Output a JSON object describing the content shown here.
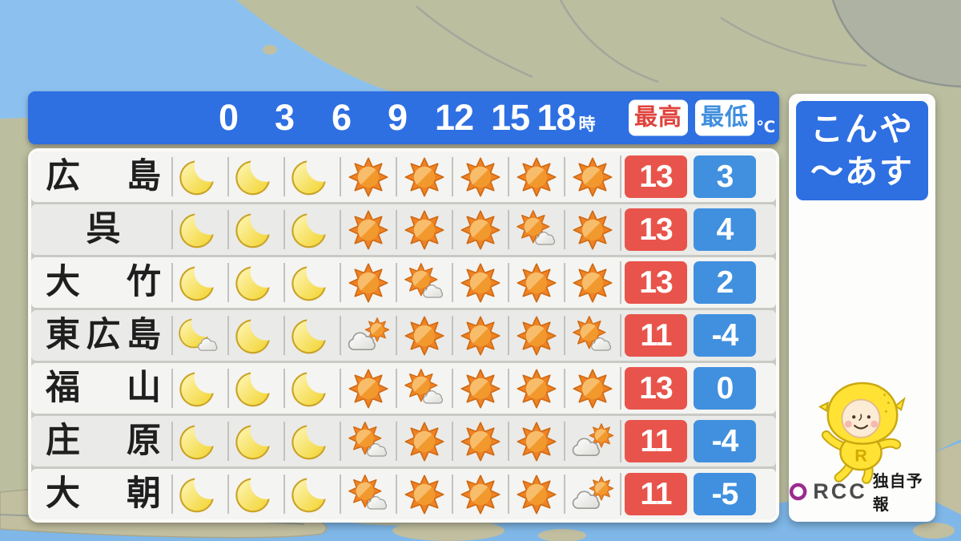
{
  "chart_data": {
    "type": "table",
    "title": "こんや～あす",
    "hour_ticks": [
      "0",
      "3",
      "6",
      "9",
      "12",
      "15",
      "18"
    ],
    "hour_suffix": "時",
    "high_label": "最高",
    "low_label": "最低",
    "unit": "℃",
    "icon_legend": {
      "moon": "clear night (crescent moon)",
      "sun": "sunny",
      "sun-cloud": "sunny with some cloud",
      "cloud-sun": "cloudy then sun",
      "moon-cloud": "clear night with some cloud"
    },
    "rows": [
      {
        "city": "広島",
        "icons": [
          "moon",
          "moon",
          "moon",
          "sun",
          "sun",
          "sun",
          "sun",
          "sun"
        ],
        "high": 13,
        "low": 3
      },
      {
        "city": "呉",
        "icons": [
          "moon",
          "moon",
          "moon",
          "sun",
          "sun",
          "sun",
          "sun-cloud",
          "sun"
        ],
        "high": 13,
        "low": 4
      },
      {
        "city": "大竹",
        "icons": [
          "moon",
          "moon",
          "moon",
          "sun",
          "sun-cloud",
          "sun",
          "sun",
          "sun"
        ],
        "high": 13,
        "low": 2
      },
      {
        "city": "東広島",
        "icons": [
          "moon-cloud",
          "moon",
          "moon",
          "cloud-sun",
          "sun",
          "sun",
          "sun",
          "sun-cloud"
        ],
        "high": 11,
        "low": -4
      },
      {
        "city": "福山",
        "icons": [
          "moon",
          "moon",
          "moon",
          "sun",
          "sun-cloud",
          "sun",
          "sun",
          "sun"
        ],
        "high": 13,
        "low": 0
      },
      {
        "city": "庄原",
        "icons": [
          "moon",
          "moon",
          "moon",
          "sun-cloud",
          "sun",
          "sun",
          "sun",
          "cloud-sun"
        ],
        "high": 11,
        "low": -4
      },
      {
        "city": "大朝",
        "icons": [
          "moon",
          "moon",
          "moon",
          "sun-cloud",
          "sun",
          "sun",
          "sun",
          "cloud-sun"
        ],
        "high": 11,
        "low": -5
      }
    ]
  },
  "header": {
    "hours": [
      "0",
      "3",
      "6",
      "9",
      "12",
      "15",
      "18"
    ],
    "hour_suffix": "時",
    "high_label": "最高",
    "low_label": "最低",
    "unit": "℃"
  },
  "side_panel": {
    "line1": "こんや",
    "line2": "～あす",
    "mascot": "lemon-mascot-character",
    "logo_text": "RCC",
    "logo_caption": "独自予報"
  },
  "colors": {
    "header_blue": "#2e6fe2",
    "high_red": "#e8544b",
    "low_blue": "#4090df",
    "logo_purple": "#9b2b90",
    "map_sea": "#8cc1ef",
    "map_land": "#bcbea0"
  }
}
